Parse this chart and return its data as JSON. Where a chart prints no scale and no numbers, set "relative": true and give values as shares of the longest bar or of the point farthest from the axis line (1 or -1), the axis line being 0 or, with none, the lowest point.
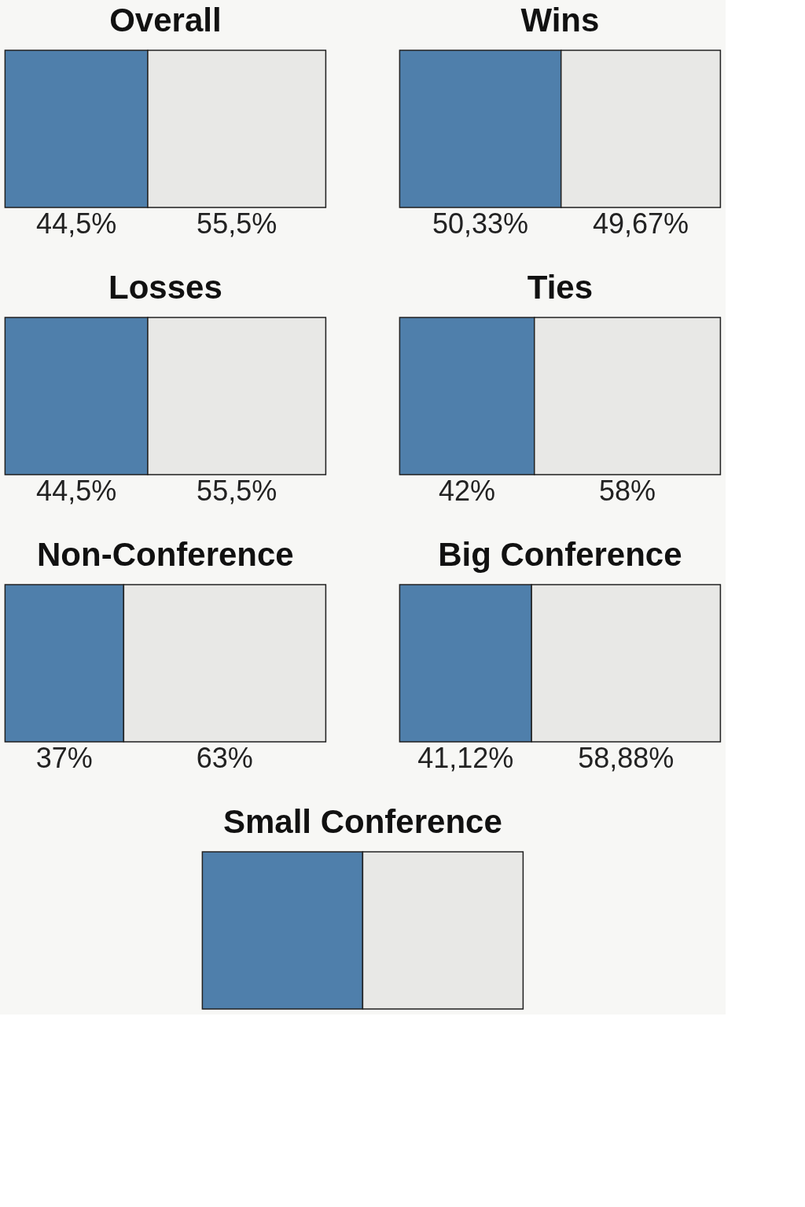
{
  "chart_data": [
    {
      "type": "bar",
      "orientation": "horizontal",
      "stacked": true,
      "title": "Overall",
      "categories": [
        null
      ],
      "series": [
        {
          "color": "#4f7fab",
          "values": [
            44.5
          ],
          "value_labels": [
            "44,5%"
          ]
        },
        {
          "color": "#e8e8e6",
          "values": [
            55.5
          ],
          "value_labels": [
            "55,5%"
          ]
        }
      ]
    },
    {
      "type": "bar",
      "orientation": "horizontal",
      "stacked": true,
      "title": "Wins",
      "categories": [
        null
      ],
      "series": [
        {
          "color": "#4f7fab",
          "values": [
            50.33
          ],
          "value_labels": [
            "50,33%"
          ]
        },
        {
          "color": "#e8e8e6",
          "values": [
            49.67
          ],
          "value_labels": [
            "49,67%"
          ]
        }
      ]
    },
    {
      "type": "bar",
      "orientation": "horizontal",
      "stacked": true,
      "title": "Losses",
      "categories": [
        null
      ],
      "series": [
        {
          "color": "#4f7fab",
          "values": [
            44.5
          ],
          "value_labels": [
            "44,5%"
          ]
        },
        {
          "color": "#e8e8e6",
          "values": [
            55.5
          ],
          "value_labels": [
            "55,5%"
          ]
        }
      ]
    },
    {
      "type": "bar",
      "orientation": "horizontal",
      "stacked": true,
      "title": "Ties",
      "categories": [
        null
      ],
      "series": [
        {
          "color": "#4f7fab",
          "values": [
            42
          ],
          "value_labels": [
            "42%"
          ]
        },
        {
          "color": "#e8e8e6",
          "values": [
            58
          ],
          "value_labels": [
            "58%"
          ]
        }
      ]
    },
    {
      "type": "bar",
      "orientation": "horizontal",
      "stacked": true,
      "title": "Non-Conference",
      "categories": [
        null
      ],
      "series": [
        {
          "color": "#4f7fab",
          "values": [
            37
          ],
          "value_labels": [
            "37%"
          ]
        },
        {
          "color": "#e8e8e6",
          "values": [
            63
          ],
          "value_labels": [
            "63%"
          ]
        }
      ]
    },
    {
      "type": "bar",
      "orientation": "horizontal",
      "stacked": true,
      "title": "Big Conference",
      "categories": [
        null
      ],
      "series": [
        {
          "color": "#4f7fab",
          "values": [
            41.12
          ],
          "value_labels": [
            "41,12%"
          ]
        },
        {
          "color": "#e8e8e6",
          "values": [
            58.88
          ],
          "value_labels": [
            "58,88%"
          ]
        }
      ]
    },
    {
      "type": "bar",
      "orientation": "horizontal",
      "stacked": true,
      "relative": true,
      "title": "Small Conference",
      "categories": [
        null
      ],
      "series": [
        {
          "color": "#4f7fab",
          "values": [
            0.5
          ]
        },
        {
          "color": "#e8e8e6",
          "values": [
            0.5
          ]
        }
      ]
    }
  ]
}
